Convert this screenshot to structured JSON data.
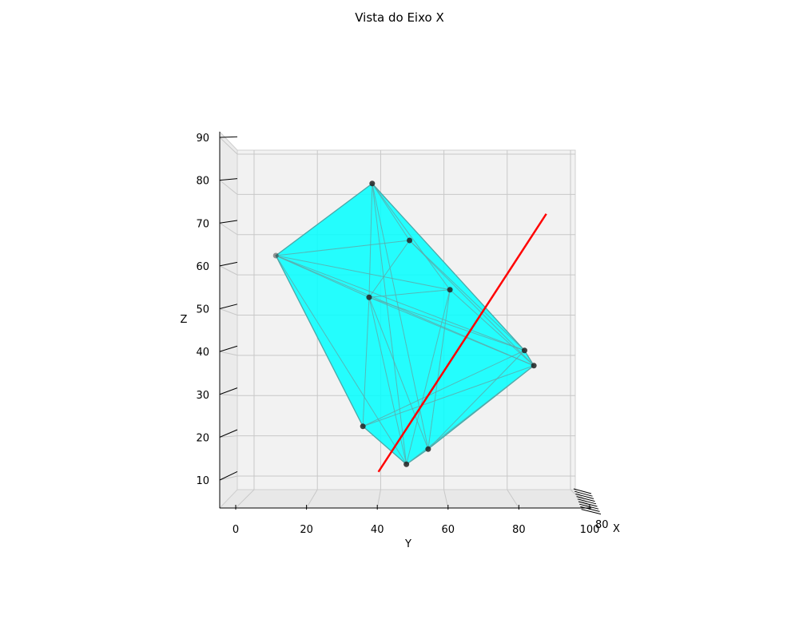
{
  "chart_data": {
    "type": "scatter",
    "projection": "3d",
    "title": "Vista do Eixo X",
    "xlabel": "X",
    "ylabel": "Y",
    "zlabel": "Z",
    "y_ticks": [
      "0",
      "20",
      "40",
      "60",
      "80",
      "100"
    ],
    "z_ticks": [
      "10",
      "20",
      "30",
      "40",
      "50",
      "60",
      "70",
      "80",
      "90"
    ],
    "x_ticks_label": "80",
    "ylim": [
      0,
      100
    ],
    "zlim": [
      5,
      90
    ],
    "grid": true,
    "hull_color": "#00ffff",
    "point_color": "#222222",
    "line_color": "#ff0000",
    "points": [
      {
        "y": 38,
        "z": 84
      },
      {
        "y": 50,
        "z": 69
      },
      {
        "y": 7,
        "z": 65
      },
      {
        "y": 63,
        "z": 56
      },
      {
        "y": 37,
        "z": 54
      },
      {
        "y": 87,
        "z": 40
      },
      {
        "y": 90,
        "z": 36
      },
      {
        "y": 35,
        "z": 20
      },
      {
        "y": 56,
        "z": 14
      },
      {
        "y": 49,
        "z": 10
      }
    ],
    "line": [
      {
        "y": 40,
        "z": 8
      },
      {
        "y": 94,
        "z": 76
      }
    ]
  }
}
